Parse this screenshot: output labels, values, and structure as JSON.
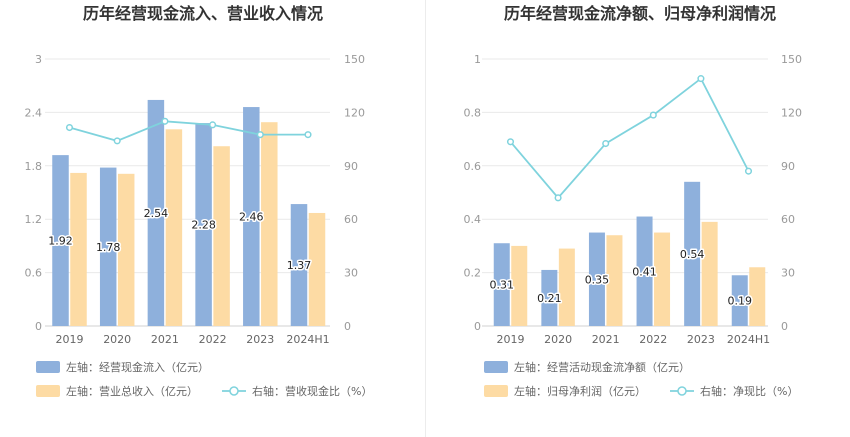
{
  "chart_data": [
    {
      "type": "bar",
      "title": "历年经营现金流入、营业收入情况",
      "categories": [
        "2019",
        "2020",
        "2021",
        "2022",
        "2023",
        "2024H1"
      ],
      "left_axis": {
        "ticks": [
          "0",
          "0.6",
          "1.2",
          "1.8",
          "2.4",
          "3"
        ],
        "ylim": [
          0,
          3
        ]
      },
      "right_axis": {
        "ticks": [
          "0",
          "30",
          "60",
          "90",
          "120",
          "150"
        ],
        "ylim": [
          0,
          150
        ]
      },
      "series": [
        {
          "name": "左轴：经营现金流入（亿元）",
          "type": "bar",
          "axis": "left",
          "color": "#8eb0dc",
          "values": [
            1.92,
            1.78,
            2.54,
            2.28,
            2.46,
            1.37
          ],
          "labels": [
            "1.92",
            "1.78",
            "2.54",
            "2.28",
            "2.46",
            "1.37"
          ]
        },
        {
          "name": "左轴：营业总收入（亿元）",
          "type": "bar",
          "axis": "left",
          "color": "#fddba4",
          "values": [
            1.72,
            1.71,
            2.21,
            2.02,
            2.29,
            1.27
          ]
        },
        {
          "name": "右轴：营收现金比（%）",
          "type": "line",
          "axis": "right",
          "color": "#7fd3dd",
          "values": [
            111.5,
            104,
            115,
            113,
            107.5,
            107.5
          ]
        }
      ],
      "grid": true,
      "legend_placement": "bottom-left"
    },
    {
      "type": "bar",
      "title": "历年经营现金流净额、归母净利润情况",
      "categories": [
        "2019",
        "2020",
        "2021",
        "2022",
        "2023",
        "2024H1"
      ],
      "left_axis": {
        "ticks": [
          "0",
          "0.2",
          "0.4",
          "0.6",
          "0.8",
          "1"
        ],
        "ylim": [
          0,
          1
        ]
      },
      "right_axis": {
        "ticks": [
          "0",
          "30",
          "60",
          "90",
          "120",
          "150"
        ],
        "ylim": [
          0,
          150
        ]
      },
      "series": [
        {
          "name": "左轴：经营活动现金流净额（亿元）",
          "type": "bar",
          "axis": "left",
          "color": "#8eb0dc",
          "values": [
            0.31,
            0.21,
            0.35,
            0.41,
            0.54,
            0.19
          ],
          "labels": [
            "0.31",
            "0.21",
            "0.35",
            "0.41",
            "0.54",
            "0.19"
          ]
        },
        {
          "name": "左轴：归母净利润（亿元）",
          "type": "bar",
          "axis": "left",
          "color": "#fddba4",
          "values": [
            0.3,
            0.29,
            0.34,
            0.35,
            0.39,
            0.22
          ]
        },
        {
          "name": "右轴：净现比（%）",
          "type": "line",
          "axis": "right",
          "color": "#7fd3dd",
          "values": [
            103.5,
            72,
            102.5,
            118.5,
            139,
            87
          ]
        }
      ],
      "grid": true,
      "legend_placement": "bottom-left"
    }
  ]
}
